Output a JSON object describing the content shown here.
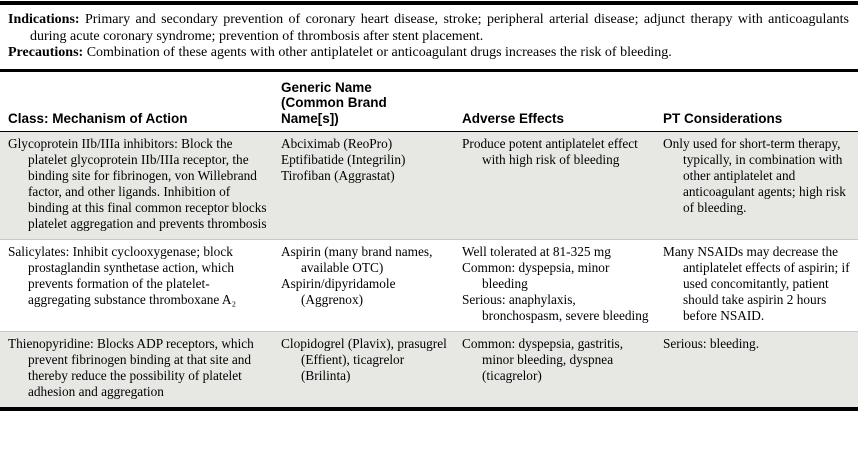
{
  "colors": {
    "row_shade": "#e7e7e4",
    "row_divider": "#c8c8c5",
    "rule": "#000000",
    "text": "#000000",
    "background": "#ffffff"
  },
  "intro": {
    "indications_label": "Indications:",
    "indications_text": " Primary and secondary prevention of coronary heart disease, stroke; peripheral arterial disease; adjunct therapy with anticoagulants during acute coronary syndrome; prevention of thrombosis after stent placement.",
    "precautions_label": "Precautions:",
    "precautions_text": " Combination of these agents with other antiplatelet or anticoagulant drugs increases the risk of bleeding."
  },
  "table": {
    "columns": [
      {
        "label": "Class: Mechanism of Action",
        "lines": [
          "Class: Mechanism of Action"
        ]
      },
      {
        "label": "Generic Name (Common Brand Name[s])",
        "lines": [
          "Generic Name",
          "(Common Brand",
          "Name[s])"
        ]
      },
      {
        "label": "Adverse Effects",
        "lines": [
          "Adverse Effects"
        ]
      },
      {
        "label": "PT Considerations",
        "lines": [
          "PT Considerations"
        ]
      }
    ],
    "rows": [
      {
        "class_mechanism": [
          "Glycoprotein IIb/IIIa inhibitors: Block the platelet glycoprotein IIb/IIIa receptor, the binding site for fibrinogen, von Willebrand factor, and other ligands. Inhibition of binding at this final common receptor blocks platelet aggregation and prevents thrombosis"
        ],
        "generic_name": [
          "Abciximab (ReoPro)",
          "Eptifibatide (Integrilin)",
          "Tirofiban (Aggrastat)"
        ],
        "adverse_effects": [
          "Produce potent antiplatelet effect with high risk of bleeding"
        ],
        "pt_considerations": [
          "Only used for short-term therapy, typically, in combination with other antiplatelet and anticoagulant agents; high risk of bleeding."
        ]
      },
      {
        "class_mechanism": [
          "Salicylates: Inhibit cyclooxygenase; block prostaglandin synthetase action, which prevents formation of the platelet-aggregating substance thromboxane A₂"
        ],
        "generic_name": [
          "Aspirin (many brand names, available OTC)",
          "Aspirin/dipyridamole (Aggrenox)"
        ],
        "adverse_effects": [
          "Well tolerated at 81-325 mg",
          "Common: dyspepsia, minor bleeding",
          "Serious: anaphylaxis, bronchospasm, severe bleeding"
        ],
        "pt_considerations": [
          "Many NSAIDs may decrease the antiplatelet effects of aspirin; if used concomitantly, patient should take aspirin 2 hours before NSAID."
        ]
      },
      {
        "class_mechanism": [
          "Thienopyridine: Blocks ADP receptors, which prevent fibrinogen binding at that site and thereby reduce the possibility of platelet adhesion and aggregation"
        ],
        "generic_name": [
          "Clopidogrel (Plavix), prasugrel (Effient), ticagrelor (Brilinta)"
        ],
        "adverse_effects": [
          "Common: dyspepsia, gastritis, minor bleeding, dyspnea (ticagrelor)"
        ],
        "pt_considerations": [
          "Serious: bleeding."
        ]
      }
    ]
  }
}
